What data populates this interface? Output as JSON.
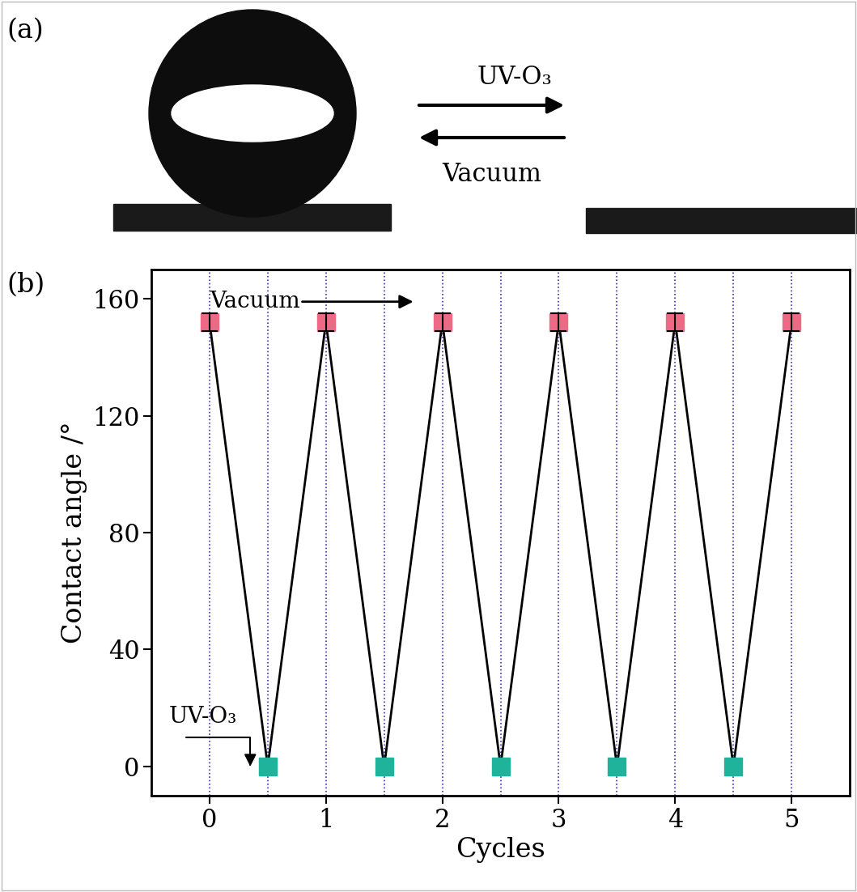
{
  "panel_a": {
    "label": "(a)",
    "forward_label": "UV-O₃",
    "backward_label": "Vacuum"
  },
  "chart_data": {
    "type": "line",
    "panel_label": "(b)",
    "x_label": "Cycles",
    "y_label": "Contact angle /°",
    "x": [
      0,
      0.5,
      1,
      1.5,
      2,
      2.5,
      3,
      3.5,
      4,
      4.5,
      5
    ],
    "values": [
      152,
      0,
      152,
      0,
      152,
      0,
      152,
      0,
      152,
      0,
      152
    ],
    "errors": [
      3,
      null,
      3,
      null,
      3,
      null,
      3,
      null,
      3,
      null,
      3
    ],
    "colors": [
      "#ee6a84",
      "#1fb39b",
      "#ee6a84",
      "#1fb39b",
      "#ee6a84",
      "#1fb39b",
      "#ee6a84",
      "#1fb39b",
      "#ee6a84",
      "#1fb39b",
      "#ee6a84"
    ],
    "color": "#000000",
    "marker": "s",
    "line_style": "solid",
    "xlim": [
      -0.5,
      5.5
    ],
    "ylim": [
      -10,
      170
    ],
    "xticks": [
      0,
      1,
      2,
      3,
      4,
      5
    ],
    "yticks": [
      0,
      40,
      80,
      120,
      160
    ],
    "annotations": [
      {
        "text": "Vacuum"
      },
      {
        "text": "UV-O₃"
      }
    ]
  }
}
